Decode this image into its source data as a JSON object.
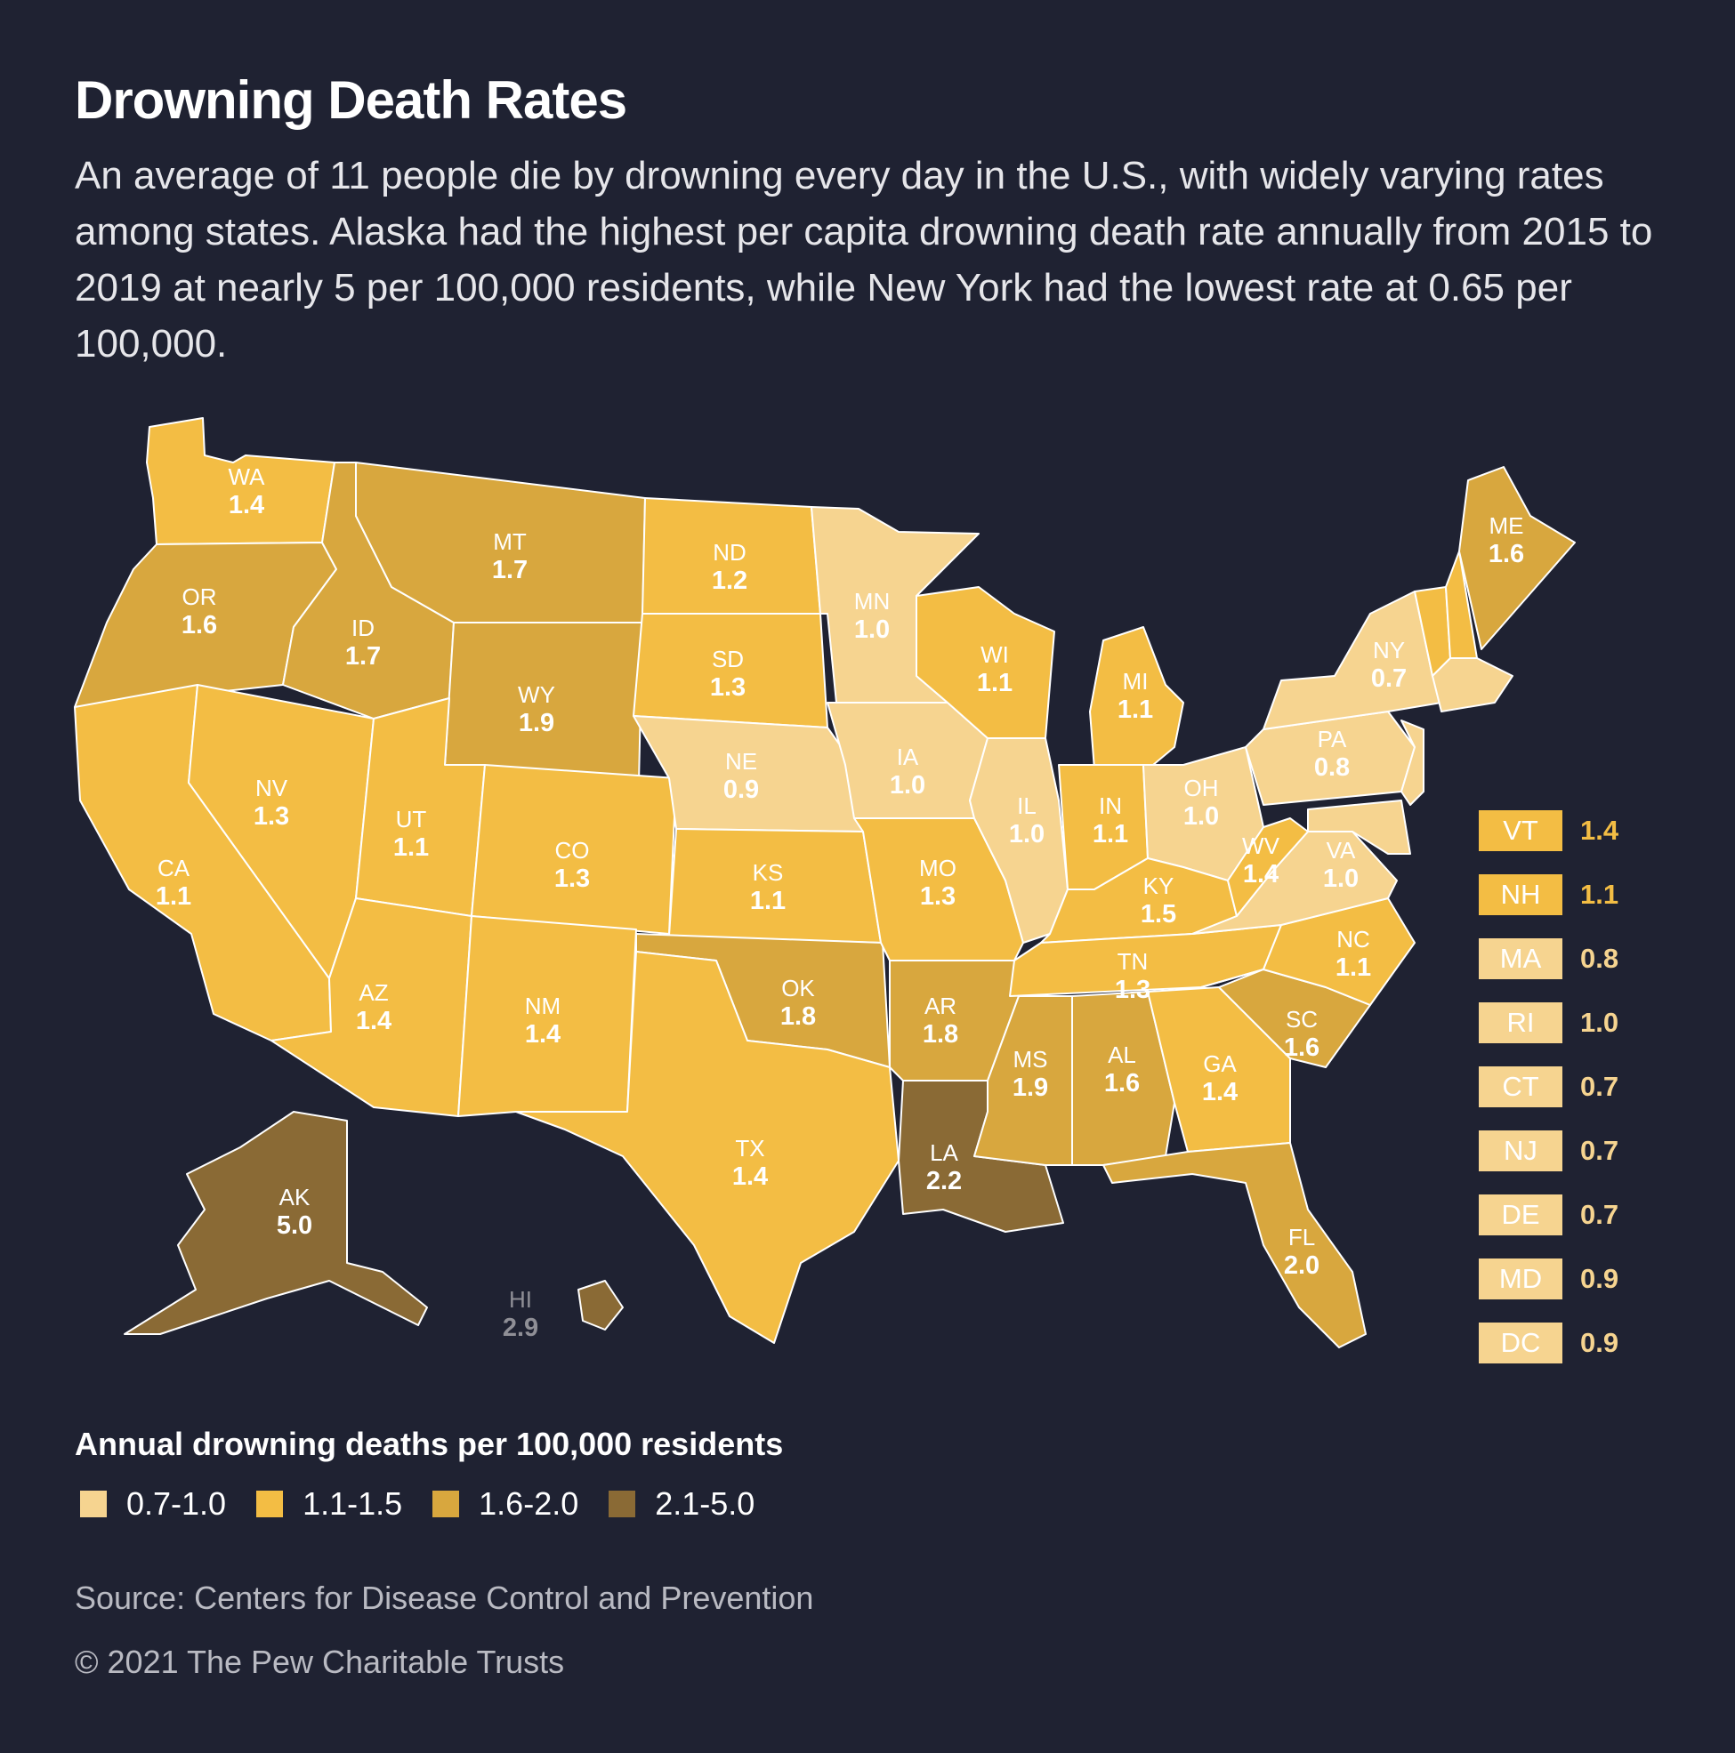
{
  "title": "Drowning Death Rates",
  "subtitle": "An average of 11 people die by drowning every day in the U.S., with widely varying rates among states. Alaska had the highest per capita drowning death rate annually from 2015 to 2019 at nearly 5 per 100,000 residents, while New York had the lowest rate at 0.65 per 100,000.",
  "colors": {
    "background": "#1f2232",
    "bin_0_7_1_0": "#f6d490",
    "bin_1_1_1_5": "#f3bd44",
    "bin_1_6_2_0": "#d8a73e",
    "bin_2_1_5_0": "#8a6a35",
    "border": "#ffffff"
  },
  "legend": {
    "title": "Annual drowning deaths per 100,000 residents",
    "items": [
      {
        "label": "0.7-1.0",
        "color": "#f6d490"
      },
      {
        "label": "1.1-1.5",
        "color": "#f3bd44"
      },
      {
        "label": "1.6-2.0",
        "color": "#d8a73e"
      },
      {
        "label": "2.1-5.0",
        "color": "#8a6a35"
      }
    ]
  },
  "small_states": [
    {
      "abbr": "VT",
      "value": "1.4"
    },
    {
      "abbr": "NH",
      "value": "1.1"
    },
    {
      "abbr": "MA",
      "value": "0.8"
    },
    {
      "abbr": "RI",
      "value": "1.0"
    },
    {
      "abbr": "CT",
      "value": "0.7"
    },
    {
      "abbr": "NJ",
      "value": "0.7"
    },
    {
      "abbr": "DE",
      "value": "0.7"
    },
    {
      "abbr": "MD",
      "value": "0.9"
    },
    {
      "abbr": "DC",
      "value": "0.9"
    }
  ],
  "states": [
    {
      "abbr": "WA",
      "value": "1.4"
    },
    {
      "abbr": "OR",
      "value": "1.6"
    },
    {
      "abbr": "CA",
      "value": "1.1"
    },
    {
      "abbr": "NV",
      "value": "1.3"
    },
    {
      "abbr": "ID",
      "value": "1.7"
    },
    {
      "abbr": "MT",
      "value": "1.7"
    },
    {
      "abbr": "WY",
      "value": "1.9"
    },
    {
      "abbr": "UT",
      "value": "1.1"
    },
    {
      "abbr": "AZ",
      "value": "1.4"
    },
    {
      "abbr": "CO",
      "value": "1.3"
    },
    {
      "abbr": "NM",
      "value": "1.4"
    },
    {
      "abbr": "ND",
      "value": "1.2"
    },
    {
      "abbr": "SD",
      "value": "1.3"
    },
    {
      "abbr": "NE",
      "value": "0.9"
    },
    {
      "abbr": "KS",
      "value": "1.1"
    },
    {
      "abbr": "OK",
      "value": "1.8"
    },
    {
      "abbr": "TX",
      "value": "1.4"
    },
    {
      "abbr": "MN",
      "value": "1.0"
    },
    {
      "abbr": "IA",
      "value": "1.0"
    },
    {
      "abbr": "MO",
      "value": "1.3"
    },
    {
      "abbr": "AR",
      "value": "1.8"
    },
    {
      "abbr": "LA",
      "value": "2.2"
    },
    {
      "abbr": "WI",
      "value": "1.1"
    },
    {
      "abbr": "IL",
      "value": "1.0"
    },
    {
      "abbr": "MI",
      "value": "1.1"
    },
    {
      "abbr": "IN",
      "value": "1.1"
    },
    {
      "abbr": "OH",
      "value": "1.0"
    },
    {
      "abbr": "KY",
      "value": "1.5"
    },
    {
      "abbr": "TN",
      "value": "1.3"
    },
    {
      "abbr": "MS",
      "value": "1.9"
    },
    {
      "abbr": "AL",
      "value": "1.6"
    },
    {
      "abbr": "GA",
      "value": "1.4"
    },
    {
      "abbr": "FL",
      "value": "2.0"
    },
    {
      "abbr": "SC",
      "value": "1.6"
    },
    {
      "abbr": "NC",
      "value": "1.1"
    },
    {
      "abbr": "VA",
      "value": "1.0"
    },
    {
      "abbr": "WV",
      "value": "1.4"
    },
    {
      "abbr": "PA",
      "value": "0.8"
    },
    {
      "abbr": "NY",
      "value": "0.7"
    },
    {
      "abbr": "ME",
      "value": "1.6"
    },
    {
      "abbr": "AK",
      "value": "5.0"
    },
    {
      "abbr": "HI",
      "value": "2.9"
    }
  ],
  "source": "Source: Centers for Disease Control and Prevention",
  "copyright": "© 2021 The Pew Charitable Trusts"
}
